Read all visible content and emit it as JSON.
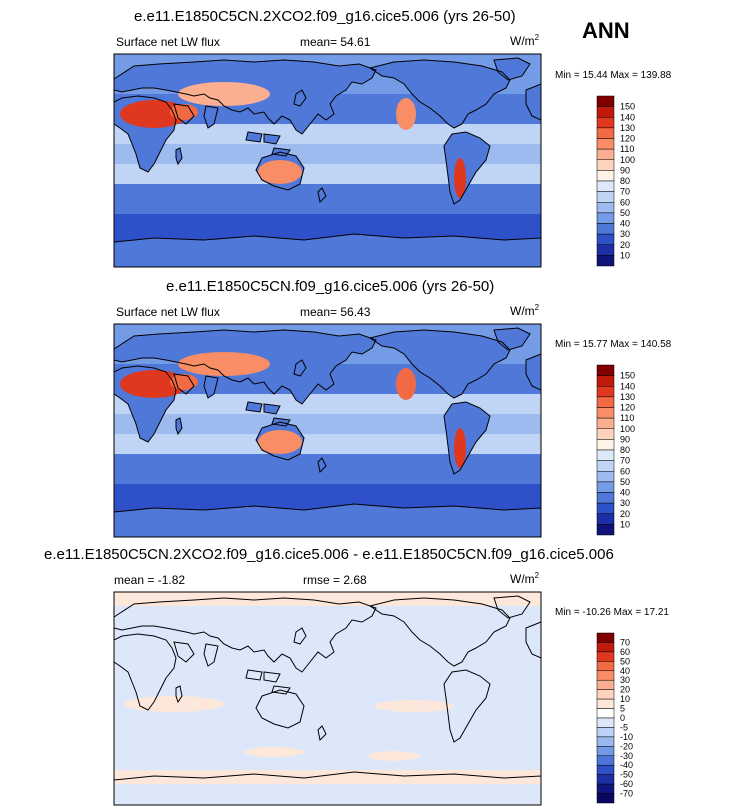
{
  "season": "ANN",
  "panels": [
    {
      "title": "e.e11.E1850C5CN.2XCO2.f09_g16.cice5.006 (yrs 26-50)",
      "variable": "Surface net LW flux",
      "stat1": "mean=  54.61",
      "stat2": "",
      "units_base": "W/m",
      "units_sup": "2",
      "minmax": "Min = 15.44 Max = 139.88",
      "levels": [
        "150",
        "140",
        "130",
        "120",
        "110",
        "100",
        "90",
        "80",
        "70",
        "60",
        "50",
        "40",
        "30",
        "20",
        "10"
      ],
      "colors": [
        "#800000",
        "#bf1a0a",
        "#e0381f",
        "#f26a44",
        "#f88d66",
        "#fbaf90",
        "#fdd3bd",
        "#fff3e8",
        "#dde9fb",
        "#c0d5f6",
        "#9ebbf0",
        "#749be5",
        "#4f78d9",
        "#2e50c8",
        "#1c2fa6",
        "#10137a"
      ]
    },
    {
      "title": "e.e11.E1850C5CN.f09_g16.cice5.006 (yrs 26-50)",
      "variable": "Surface net LW flux",
      "stat1": "mean=  56.43",
      "stat2": "",
      "units_base": "W/m",
      "units_sup": "2",
      "minmax": "Min = 15.77 Max = 140.58",
      "levels": [
        "150",
        "140",
        "130",
        "120",
        "110",
        "100",
        "90",
        "80",
        "70",
        "60",
        "50",
        "40",
        "30",
        "20",
        "10"
      ],
      "colors": [
        "#800000",
        "#bf1a0a",
        "#e0381f",
        "#f26a44",
        "#f88d66",
        "#fbaf90",
        "#fdd3bd",
        "#fff3e8",
        "#dde9fb",
        "#c0d5f6",
        "#9ebbf0",
        "#749be5",
        "#4f78d9",
        "#2e50c8",
        "#1c2fa6",
        "#10137a"
      ]
    },
    {
      "title": "e.e11.E1850C5CN.2XCO2.f09_g16.cice5.006 - e.e11.E1850C5CN.f09_g16.cice5.006",
      "variable": "",
      "stat1": "mean =  -1.82",
      "stat2": "rmse =  2.68",
      "units_base": "W/m",
      "units_sup": "2",
      "minmax": "Min = -10.26 Max =  17.21",
      "levels": [
        "70",
        "60",
        "50",
        "40",
        "30",
        "20",
        "10",
        "5",
        "0",
        "-5",
        "-10",
        "-20",
        "-30",
        "-40",
        "-50",
        "-60",
        "-70"
      ],
      "colors": [
        "#800000",
        "#bf1a0a",
        "#e0381f",
        "#f26a44",
        "#f88d66",
        "#fbaf90",
        "#fdd3bd",
        "#fde7da",
        "#ffffff",
        "#dce8fa",
        "#bcd3f5",
        "#9ab8ef",
        "#7398e4",
        "#4d74d8",
        "#2f50c6",
        "#1d2fa5",
        "#12157d",
        "#0a0760"
      ]
    }
  ]
}
